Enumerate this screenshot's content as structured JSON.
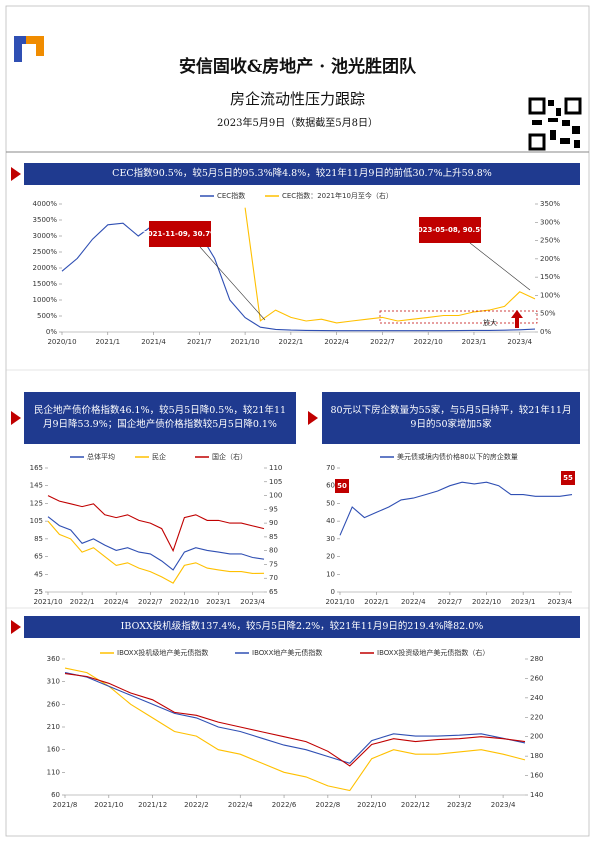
{
  "header": {
    "team": "安信固收&房地产 · 池光胜团队",
    "title": "房企流动性压力跟踪",
    "date": "2023年5月9日（数据截至5月8日）"
  },
  "chart_data": [
    {
      "type": "line",
      "title": "CEC指数90.5%，较5月5日的95.3%降4.8%，较21年11月9日的前低30.7%上升59.8%",
      "categories": [
        "2020/10",
        null,
        null,
        "2021/1",
        null,
        null,
        "2021/4",
        null,
        null,
        "2021/7",
        null,
        null,
        "2021/10",
        null,
        null,
        "2022/1",
        null,
        null,
        "2022/4",
        null,
        null,
        "2022/7",
        null,
        null,
        "2022/10",
        null,
        null,
        "2023/1",
        null,
        null,
        "2023/4",
        null
      ],
      "series": [
        {
          "name": "CEC指数",
          "color": "#2f4fb3",
          "values": [
            1900,
            2300,
            2900,
            3350,
            3400,
            3000,
            3350,
            3450,
            3300,
            3100,
            2300,
            1000,
            450,
            150,
            80,
            60,
            50,
            45,
            40,
            40,
            40,
            40,
            40,
            40,
            40,
            40,
            45,
            50,
            50,
            55,
            70,
            90.5
          ]
        },
        {
          "name": "CEC指数：2021年10月至今（右）",
          "color": "#ffc000",
          "axis": "y2",
          "values": [
            null,
            null,
            null,
            null,
            null,
            null,
            null,
            null,
            null,
            null,
            null,
            null,
            340,
            30.7,
            60,
            40,
            30,
            35,
            25,
            30,
            35,
            40,
            30,
            35,
            40,
            45,
            45,
            55,
            60,
            70,
            110,
            90.5
          ]
        }
      ],
      "ylim": [
        0,
        4000
      ],
      "yticks": [
        {
          "value": 0,
          "label": "0%"
        },
        {
          "value": 500,
          "label": "500%"
        },
        {
          "value": 1000,
          "label": "1000%"
        },
        {
          "value": 1500,
          "label": "1500%"
        },
        {
          "value": 2000,
          "label": "2000%"
        },
        {
          "value": 2500,
          "label": "2500%"
        },
        {
          "value": 3000,
          "label": "3000%"
        },
        {
          "value": 3500,
          "label": "3500%"
        },
        {
          "value": 4000,
          "label": "4000%"
        }
      ],
      "y2lim": [
        0,
        350
      ],
      "y2ticks": [
        {
          "value": 0,
          "label": "0%"
        },
        {
          "value": 50,
          "label": "50%"
        },
        {
          "value": 100,
          "label": "100%"
        },
        {
          "value": 150,
          "label": "150%"
        },
        {
          "value": 200,
          "label": "200%"
        },
        {
          "value": 250,
          "label": "250%"
        },
        {
          "value": 300,
          "label": "300%"
        },
        {
          "value": 350,
          "label": "350%"
        }
      ],
      "legend": "top",
      "annotations": [
        "2021-11-09, 30.7%",
        "2023-05-08, 90.5%",
        "放大"
      ]
    },
    {
      "type": "line",
      "title": "民企地产债价格指数46.1%，较5月5日降0.5%，较21年11月9日降53.9%；国企地产债价格指数较5月5日降0.1%",
      "categories": [
        "2021/10",
        null,
        null,
        "2022/1",
        null,
        null,
        "2022/4",
        null,
        null,
        "2022/7",
        null,
        null,
        "2022/10",
        null,
        null,
        "2023/1",
        null,
        null,
        "2023/4",
        null
      ],
      "series": [
        {
          "name": "总体平均",
          "color": "#2f4fb3",
          "values": [
            110,
            100,
            95,
            80,
            85,
            78,
            72,
            75,
            70,
            68,
            60,
            50,
            70,
            75,
            72,
            70,
            68,
            68,
            64,
            62
          ]
        },
        {
          "name": "民企",
          "color": "#ffc000",
          "values": [
            105,
            90,
            85,
            70,
            75,
            65,
            55,
            58,
            52,
            48,
            42,
            35,
            55,
            58,
            52,
            50,
            48,
            48,
            46,
            46.1
          ]
        },
        {
          "name": "国企（右）",
          "color": "#c00000",
          "axis": "y2",
          "values": [
            100,
            98,
            97,
            96,
            97,
            93,
            92,
            93,
            91,
            90,
            88,
            80,
            92,
            93,
            91,
            91,
            90,
            90,
            89,
            88
          ]
        }
      ],
      "ylim": [
        25,
        165
      ],
      "yticks": [
        25,
        45,
        65,
        85,
        105,
        125,
        145,
        165
      ],
      "y2lim": [
        65,
        110
      ],
      "y2ticks": [
        65,
        70,
        75,
        80,
        85,
        90,
        95,
        100,
        105,
        110
      ],
      "legend": "top"
    },
    {
      "type": "line",
      "title": "80元以下房企数量为55家，与5月5日持平，较21年11月9日的50家增加5家",
      "categories": [
        "2021/10",
        null,
        null,
        "2022/1",
        null,
        null,
        "2022/4",
        null,
        null,
        "2022/7",
        null,
        null,
        "2022/10",
        null,
        null,
        "2023/1",
        null,
        null,
        "2023/4",
        null
      ],
      "series": [
        {
          "name": "美元债或境内债价格80以下的房企数量",
          "color": "#2f4fb3",
          "values": [
            32,
            48,
            42,
            45,
            48,
            52,
            53,
            55,
            57,
            60,
            62,
            61,
            62,
            60,
            55,
            55,
            54,
            54,
            54,
            55
          ]
        }
      ],
      "ylim": [
        0,
        70
      ],
      "yticks": [
        0,
        10,
        20,
        30,
        40,
        50,
        60,
        70
      ],
      "legend": "top",
      "annotations": [
        "50",
        "55"
      ]
    },
    {
      "type": "line",
      "title": "IBOXX投机级指数137.4%，较5月5日降2.2%，较21年11月9日的219.4%降82.0%",
      "categories": [
        "2021/8",
        null,
        "2021/10",
        null,
        "2021/12",
        null,
        "2022/2",
        null,
        "2022/4",
        null,
        "2022/6",
        null,
        "2022/8",
        null,
        "2022/10",
        null,
        "2022/12",
        null,
        "2023/2",
        null,
        "2023/4",
        null
      ],
      "series": [
        {
          "name": "IBOXX投机级地产美元债指数",
          "color": "#ffc000",
          "values": [
            340,
            330,
            300,
            260,
            230,
            200,
            190,
            160,
            150,
            130,
            110,
            100,
            80,
            70,
            140,
            160,
            150,
            150,
            155,
            160,
            150,
            137.4
          ]
        },
        {
          "name": "IBOXX地产美元债指数",
          "color": "#2f4fb3",
          "values": [
            330,
            320,
            300,
            280,
            260,
            240,
            230,
            210,
            200,
            185,
            170,
            160,
            145,
            130,
            180,
            195,
            190,
            190,
            192,
            195,
            185,
            175
          ]
        },
        {
          "name": "IBOXX投资级地产美元债指数（右）",
          "color": "#c00000",
          "axis": "y2",
          "values": [
            265,
            262,
            255,
            245,
            238,
            225,
            222,
            215,
            210,
            205,
            200,
            195,
            185,
            170,
            192,
            198,
            195,
            197,
            198,
            200,
            198,
            195
          ]
        }
      ],
      "ylim": [
        60,
        360
      ],
      "yticks": [
        60,
        110,
        160,
        210,
        260,
        310,
        360
      ],
      "y2lim": [
        140,
        280
      ],
      "y2ticks": [
        140,
        160,
        180,
        200,
        220,
        240,
        260,
        280
      ],
      "legend": "top"
    }
  ]
}
